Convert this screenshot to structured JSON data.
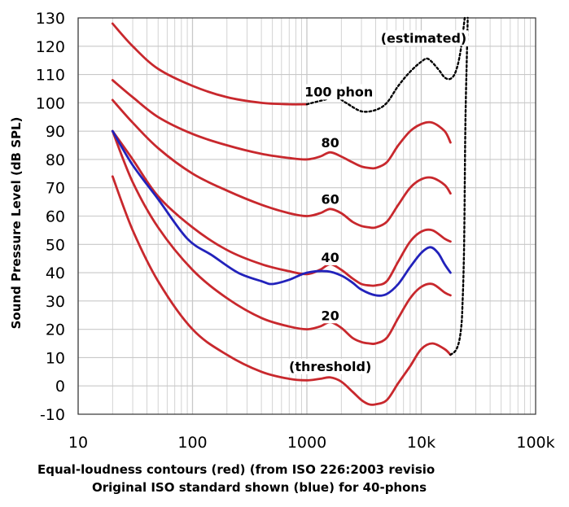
{
  "chart_data": {
    "type": "line",
    "title": "",
    "xlabel_line1": "Equal-loudness contours (red) (from ISO 226:2003 revisio",
    "xlabel_line2": "Original ISO standard shown (blue) for 40-phons",
    "ylabel": "Sound Pressure Level (dB SPL)",
    "x_scale": "log",
    "xlim": [
      10,
      100000
    ],
    "ylim": [
      -10,
      130
    ],
    "grid": true,
    "x_ticks": [
      {
        "value": 10,
        "label": "10"
      },
      {
        "value": 100,
        "label": "100"
      },
      {
        "value": 1000,
        "label": "1000"
      },
      {
        "value": 10000,
        "label": "10k"
      },
      {
        "value": 100000,
        "label": "100k"
      }
    ],
    "y_ticks": [
      {
        "value": 130,
        "label": "130"
      },
      {
        "value": 120,
        "label": "120"
      },
      {
        "value": 110,
        "label": "110"
      },
      {
        "value": 100,
        "label": "100"
      },
      {
        "value": 90,
        "label": "90"
      },
      {
        "value": 80,
        "label": "80"
      },
      {
        "value": 70,
        "label": "70"
      },
      {
        "value": 60,
        "label": "60"
      },
      {
        "value": 50,
        "label": "50"
      },
      {
        "value": 40,
        "label": "40"
      },
      {
        "value": 30,
        "label": "30"
      },
      {
        "value": 20,
        "label": "20"
      },
      {
        "value": 10,
        "label": "10"
      },
      {
        "value": 0,
        "label": "0"
      },
      {
        "value": -10,
        "label": "-10"
      }
    ],
    "colors": {
      "iso226": "#c8282d",
      "original": "#2222bb",
      "estimated": "#000000",
      "grid": "#c8c8c8"
    },
    "series": [
      {
        "key": "threshold",
        "group": "iso226",
        "points": [
          [
            20,
            74
          ],
          [
            30,
            55
          ],
          [
            50,
            37
          ],
          [
            100,
            20
          ],
          [
            200,
            11
          ],
          [
            400,
            5
          ],
          [
            700,
            2.5
          ],
          [
            1000,
            2
          ],
          [
            1300,
            2.5
          ],
          [
            1600,
            3
          ],
          [
            2000,
            1.5
          ],
          [
            2500,
            -2
          ],
          [
            3000,
            -5
          ],
          [
            3500,
            -6.5
          ],
          [
            4000,
            -6.5
          ],
          [
            5000,
            -5
          ],
          [
            6300,
            1
          ],
          [
            8000,
            7
          ],
          [
            10000,
            13
          ],
          [
            12500,
            15
          ],
          [
            16000,
            13
          ],
          [
            18000,
            11
          ]
        ]
      },
      {
        "key": "20",
        "group": "iso226",
        "points": [
          [
            20,
            90
          ],
          [
            30,
            72
          ],
          [
            50,
            56
          ],
          [
            100,
            41
          ],
          [
            200,
            31
          ],
          [
            400,
            24
          ],
          [
            700,
            21
          ],
          [
            1000,
            20
          ],
          [
            1300,
            21
          ],
          [
            1600,
            22.5
          ],
          [
            2000,
            20.5
          ],
          [
            2500,
            17
          ],
          [
            3000,
            15.5
          ],
          [
            3500,
            15
          ],
          [
            4000,
            15
          ],
          [
            5000,
            17
          ],
          [
            6300,
            24
          ],
          [
            8000,
            31
          ],
          [
            10000,
            35
          ],
          [
            12500,
            36
          ],
          [
            16000,
            33
          ],
          [
            18000,
            32
          ]
        ]
      },
      {
        "key": "40",
        "group": "iso226",
        "points": [
          [
            20,
            90
          ],
          [
            30,
            80
          ],
          [
            50,
            67
          ],
          [
            100,
            56
          ],
          [
            200,
            48
          ],
          [
            400,
            43
          ],
          [
            700,
            40.5
          ],
          [
            1000,
            39.5
          ],
          [
            1300,
            41
          ],
          [
            1600,
            43
          ],
          [
            2000,
            41
          ],
          [
            2500,
            38
          ],
          [
            3000,
            36
          ],
          [
            3500,
            35.5
          ],
          [
            4000,
            35.5
          ],
          [
            5000,
            37
          ],
          [
            6300,
            44
          ],
          [
            8000,
            51
          ],
          [
            10000,
            54.5
          ],
          [
            12500,
            55
          ],
          [
            16000,
            52
          ],
          [
            18000,
            51
          ]
        ]
      },
      {
        "key": "60",
        "group": "iso226",
        "points": [
          [
            20,
            101
          ],
          [
            30,
            93
          ],
          [
            50,
            84
          ],
          [
            100,
            75
          ],
          [
            200,
            69
          ],
          [
            400,
            64
          ],
          [
            700,
            61
          ],
          [
            1000,
            60
          ],
          [
            1300,
            61
          ],
          [
            1600,
            62.5
          ],
          [
            2000,
            61
          ],
          [
            2500,
            58
          ],
          [
            3000,
            56.5
          ],
          [
            3500,
            56
          ],
          [
            4000,
            56
          ],
          [
            5000,
            58
          ],
          [
            6300,
            64
          ],
          [
            8000,
            70
          ],
          [
            10000,
            73
          ],
          [
            12500,
            73.5
          ],
          [
            16000,
            71
          ],
          [
            18000,
            68
          ]
        ]
      },
      {
        "key": "80",
        "group": "iso226",
        "points": [
          [
            20,
            108
          ],
          [
            30,
            102
          ],
          [
            50,
            95
          ],
          [
            100,
            89
          ],
          [
            200,
            85
          ],
          [
            400,
            82
          ],
          [
            700,
            80.5
          ],
          [
            1000,
            80
          ],
          [
            1300,
            81
          ],
          [
            1600,
            82.5
          ],
          [
            2000,
            81
          ],
          [
            2500,
            79
          ],
          [
            3000,
            77.5
          ],
          [
            3500,
            77
          ],
          [
            4000,
            77
          ],
          [
            5000,
            79
          ],
          [
            6300,
            85
          ],
          [
            8000,
            90
          ],
          [
            10000,
            92.5
          ],
          [
            12500,
            93
          ],
          [
            16000,
            90
          ],
          [
            18000,
            86
          ]
        ]
      },
      {
        "key": "100",
        "group": "iso226",
        "points": [
          [
            20,
            128
          ],
          [
            30,
            120
          ],
          [
            50,
            112
          ],
          [
            100,
            106
          ],
          [
            200,
            102
          ],
          [
            400,
            100
          ],
          [
            700,
            99.5
          ],
          [
            1000,
            99.5
          ]
        ]
      },
      {
        "key": "40-original",
        "group": "original",
        "points": [
          [
            20,
            90
          ],
          [
            30,
            78
          ],
          [
            50,
            66
          ],
          [
            90,
            52
          ],
          [
            150,
            46
          ],
          [
            250,
            40
          ],
          [
            400,
            37
          ],
          [
            500,
            36
          ],
          [
            700,
            37.5
          ],
          [
            1000,
            40
          ],
          [
            1500,
            40.5
          ],
          [
            2000,
            39
          ],
          [
            2500,
            36.5
          ],
          [
            3000,
            34
          ],
          [
            4000,
            32
          ],
          [
            5000,
            32.5
          ],
          [
            6300,
            36
          ],
          [
            8000,
            42
          ],
          [
            10000,
            47
          ],
          [
            12000,
            49
          ],
          [
            14000,
            47
          ],
          [
            16000,
            43
          ],
          [
            18000,
            40
          ]
        ]
      },
      {
        "key": "100-estimated",
        "group": "estimated",
        "points": [
          [
            1000,
            99.5
          ],
          [
            1400,
            101
          ],
          [
            1800,
            102
          ],
          [
            2200,
            100
          ],
          [
            3000,
            97
          ],
          [
            4000,
            97.5
          ],
          [
            5000,
            100
          ],
          [
            6300,
            106
          ],
          [
            8000,
            111
          ],
          [
            10000,
            114.5
          ],
          [
            11500,
            115.5
          ],
          [
            14000,
            112
          ],
          [
            16000,
            109
          ],
          [
            18000,
            108.5
          ],
          [
            20000,
            111
          ],
          [
            22000,
            118
          ],
          [
            24000,
            130
          ]
        ]
      },
      {
        "key": "tail-estimated",
        "group": "estimated",
        "points": [
          [
            18000,
            11
          ],
          [
            20000,
            12.5
          ],
          [
            21500,
            16
          ],
          [
            22500,
            22
          ],
          [
            23000,
            30
          ],
          [
            23500,
            42
          ],
          [
            23800,
            55
          ],
          [
            24000,
            70
          ],
          [
            24200,
            85
          ],
          [
            24500,
            100
          ],
          [
            25000,
            115
          ],
          [
            25500,
            130
          ]
        ]
      }
    ],
    "annotations": [
      {
        "text": "(estimated)",
        "x": 10500,
        "y": 123
      },
      {
        "text": "100 phon",
        "x": 1900,
        "y": 104
      },
      {
        "text": "80",
        "x": 1600,
        "y": 86
      },
      {
        "text": "60",
        "x": 1600,
        "y": 66
      },
      {
        "text": "40",
        "x": 1600,
        "y": 45.5
      },
      {
        "text": "20",
        "x": 1600,
        "y": 25
      },
      {
        "text": "(threshold)",
        "x": 1600,
        "y": 7
      }
    ]
  }
}
